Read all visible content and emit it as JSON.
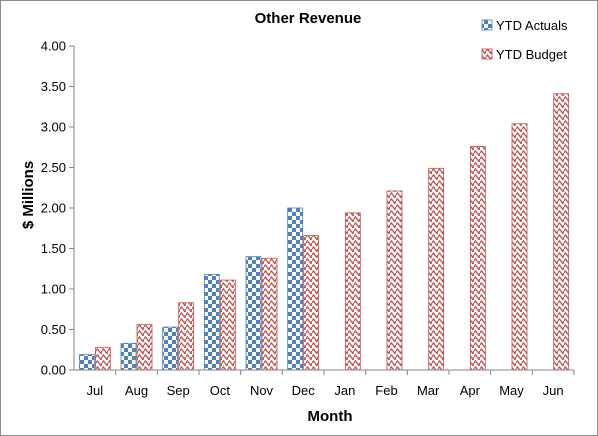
{
  "chart_data": {
    "type": "bar",
    "title": "Other Revenue",
    "xlabel": "Month",
    "ylabel": "$ Millions",
    "categories": [
      "Jul",
      "Aug",
      "Sep",
      "Oct",
      "Nov",
      "Dec",
      "Jan",
      "Feb",
      "Mar",
      "Apr",
      "May",
      "Jun"
    ],
    "series": [
      {
        "name": "YTD Actuals",
        "color": "#4f81bd",
        "pattern": "checkerboard",
        "values": [
          0.19,
          0.33,
          0.53,
          1.18,
          1.4,
          2.0,
          null,
          null,
          null,
          null,
          null,
          null
        ]
      },
      {
        "name": "YTD Budget",
        "color": "#c0504d",
        "pattern": "zigzag",
        "values": [
          0.28,
          0.56,
          0.83,
          1.11,
          1.38,
          1.66,
          1.94,
          2.21,
          2.49,
          2.76,
          3.04,
          3.41
        ]
      }
    ],
    "ylim": [
      0,
      4
    ],
    "yticks": [
      "0.00",
      "0.50",
      "1.00",
      "1.50",
      "2.00",
      "2.50",
      "3.00",
      "3.50",
      "4.00"
    ],
    "grid": false,
    "legend": "top-right"
  }
}
